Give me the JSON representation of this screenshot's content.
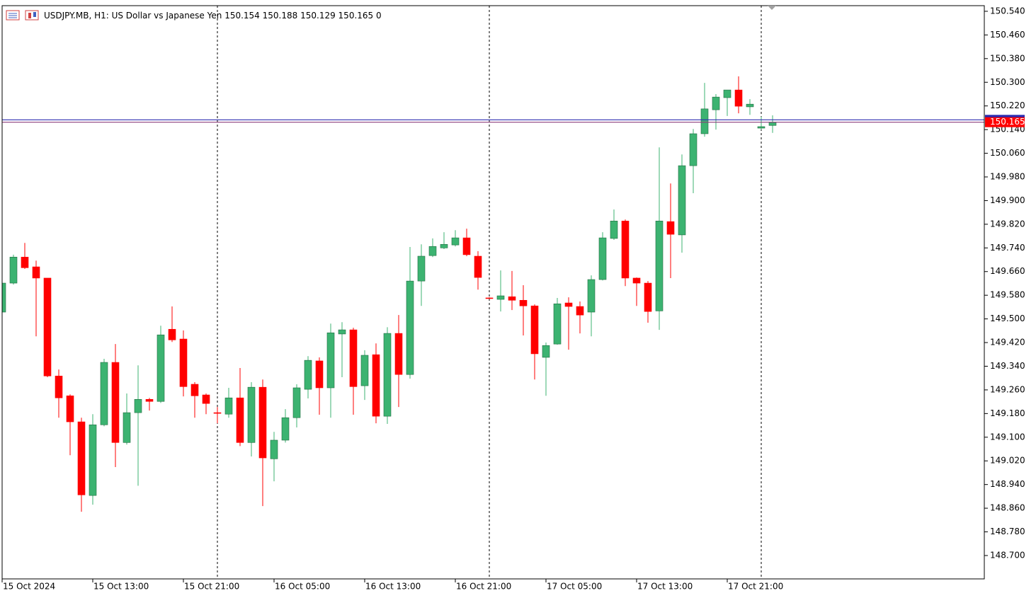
{
  "chart_data": {
    "type": "candlestick",
    "title": "USDJPY.MB, H1:  US Dollar vs Japanese Yen",
    "header_extra": 0,
    "categories": [
      "15 Oct 2024",
      null,
      null,
      null,
      null,
      null,
      null,
      null,
      "15 Oct 13:00",
      null,
      null,
      null,
      null,
      null,
      null,
      null,
      "15 Oct 21:00",
      null,
      null,
      null,
      null,
      null,
      null,
      null,
      "16 Oct 05:00",
      null,
      null,
      null,
      null,
      null,
      null,
      null,
      "16 Oct 13:00",
      null,
      null,
      null,
      null,
      null,
      null,
      null,
      "16 Oct 21:00",
      null,
      null,
      null,
      null,
      null,
      null,
      null,
      "17 Oct 05:00",
      null,
      null,
      null,
      null,
      null,
      null,
      null,
      "17 Oct 13:00",
      null,
      null,
      null,
      null,
      null,
      null,
      null,
      "17 Oct 21:00",
      null,
      null,
      null,
      null
    ],
    "open": [
      149.523,
      149.621,
      149.709,
      149.676,
      149.638,
      149.307,
      149.24,
      149.152,
      148.903,
      149.142,
      149.353,
      149.082,
      149.183,
      149.228,
      149.221,
      149.465,
      149.432,
      149.279,
      149.243,
      149.183,
      149.178,
      149.233,
      149.082,
      149.269,
      149.027,
      149.09,
      149.166,
      149.262,
      149.358,
      149.267,
      149.449,
      149.463,
      149.274,
      149.379,
      149.171,
      149.451,
      149.312,
      149.628,
      149.714,
      149.74,
      149.75,
      149.774,
      149.712,
      149.571,
      149.566,
      149.575,
      149.563,
      149.544,
      149.37,
      149.415,
      149.554,
      149.542,
      149.523,
      149.633,
      149.772,
      149.831,
      149.638,
      149.621,
      149.527,
      149.829,
      149.784,
      150.018,
      150.126,
      150.207,
      150.248,
      150.274,
      150.217,
      150.145,
      150.154
    ],
    "high": [
      149.626,
      149.717,
      149.757,
      149.697,
      149.638,
      149.329,
      149.245,
      149.166,
      149.178,
      149.365,
      149.415,
      149.248,
      149.343,
      149.233,
      149.477,
      149.542,
      149.461,
      149.286,
      149.248,
      149.202,
      149.267,
      149.334,
      149.286,
      149.295,
      149.118,
      149.195,
      149.279,
      149.374,
      149.37,
      149.484,
      149.489,
      149.47,
      149.394,
      149.417,
      149.472,
      149.513,
      149.743,
      149.752,
      149.772,
      149.793,
      149.8,
      149.805,
      149.729,
      149.573,
      149.664,
      149.662,
      149.614,
      149.549,
      149.42,
      149.571,
      149.573,
      149.559,
      149.647,
      149.793,
      149.87,
      149.836,
      149.64,
      149.628,
      150.08,
      149.958,
      150.056,
      150.142,
      150.298,
      150.26,
      150.274,
      150.32,
      150.243,
      150.183,
      150.188
    ],
    "low": [
      149.513,
      149.616,
      149.669,
      149.441,
      149.303,
      149.166,
      149.039,
      148.848,
      148.872,
      149.137,
      148.999,
      149.075,
      148.936,
      149.19,
      149.216,
      149.422,
      149.238,
      149.166,
      149.178,
      149.147,
      149.166,
      149.07,
      149.035,
      148.867,
      148.951,
      149.082,
      149.133,
      149.231,
      149.176,
      149.166,
      149.303,
      149.176,
      149.226,
      149.147,
      149.145,
      149.202,
      149.298,
      149.544,
      149.709,
      149.736,
      149.745,
      149.712,
      149.599,
      149.568,
      149.525,
      149.53,
      149.444,
      149.295,
      149.24,
      149.413,
      149.396,
      149.451,
      149.441,
      149.63,
      149.767,
      149.611,
      149.544,
      149.487,
      149.463,
      149.638,
      149.724,
      149.925,
      150.116,
      150.14,
      150.186,
      150.195,
      150.19,
      150.14,
      150.129
    ],
    "close": [
      149.621,
      149.709,
      149.673,
      149.638,
      149.307,
      149.233,
      149.152,
      148.905,
      149.142,
      149.353,
      149.082,
      149.183,
      149.228,
      149.221,
      149.446,
      149.429,
      149.271,
      149.24,
      149.214,
      149.181,
      149.233,
      149.082,
      149.269,
      149.03,
      149.09,
      149.166,
      149.267,
      149.36,
      149.267,
      149.453,
      149.463,
      149.271,
      149.377,
      149.171,
      149.451,
      149.312,
      149.628,
      149.712,
      149.745,
      149.752,
      149.774,
      149.717,
      149.64,
      149.57,
      149.578,
      149.563,
      149.544,
      149.382,
      149.41,
      149.551,
      149.542,
      149.513,
      149.633,
      149.774,
      149.831,
      149.638,
      149.621,
      149.525,
      149.831,
      149.786,
      150.018,
      150.126,
      150.21,
      150.25,
      150.274,
      150.219,
      150.226,
      150.15,
      150.165
    ],
    "up_color": "#3cb371",
    "down_color": "#ff0000",
    "ask_line": 150.173,
    "ask_color": "#2a2ab0",
    "bid_color": "#8a3a7a",
    "period_separators": [
      19,
      43,
      67
    ],
    "ylim": [
      148.621,
      150.559
    ],
    "yticks": [
      {
        "value": 150.54,
        "label": "150.540"
      },
      {
        "value": 150.46,
        "label": "150.460"
      },
      {
        "value": 150.38,
        "label": "150.380"
      },
      {
        "value": 150.3,
        "label": "150.300"
      },
      {
        "value": 150.22,
        "label": "150.220"
      },
      {
        "value": 150.14,
        "label": "150.140"
      },
      {
        "value": 150.06,
        "label": "150.060"
      },
      {
        "value": 149.98,
        "label": "149.980"
      },
      {
        "value": 149.9,
        "label": "149.900"
      },
      {
        "value": 149.82,
        "label": "149.820"
      },
      {
        "value": 149.74,
        "label": "149.740"
      },
      {
        "value": 149.66,
        "label": "149.660"
      },
      {
        "value": 149.58,
        "label": "149.580"
      },
      {
        "value": 149.5,
        "label": "149.500"
      },
      {
        "value": 149.42,
        "label": "149.420"
      },
      {
        "value": 149.34,
        "label": "149.340"
      },
      {
        "value": 149.26,
        "label": "149.260"
      },
      {
        "value": 149.18,
        "label": "149.180"
      },
      {
        "value": 149.1,
        "label": "149.100"
      },
      {
        "value": 149.02,
        "label": "149.020"
      },
      {
        "value": 148.94,
        "label": "148.940"
      },
      {
        "value": 148.86,
        "label": "148.860"
      },
      {
        "value": 148.78,
        "label": "148.780"
      },
      {
        "value": 148.7,
        "label": "148.700"
      }
    ],
    "grid": false
  }
}
